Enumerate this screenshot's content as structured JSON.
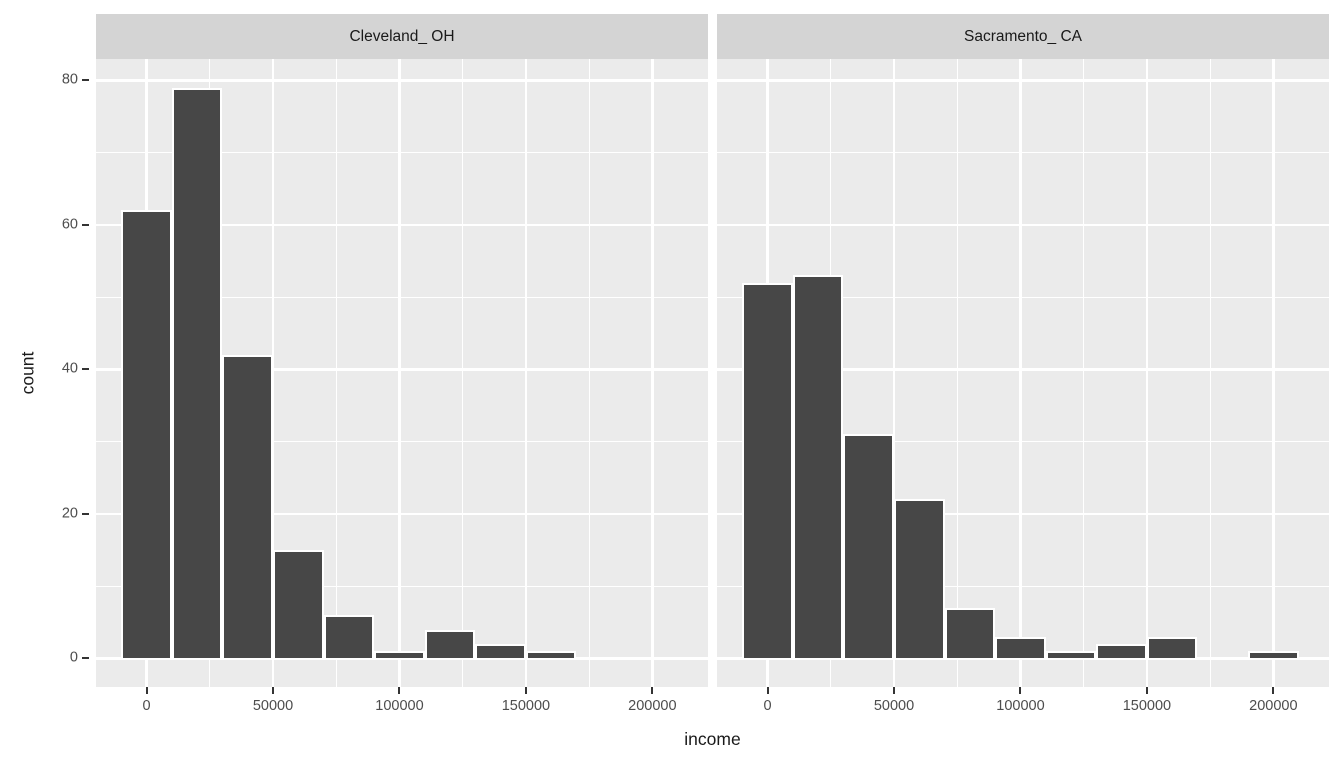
{
  "chart_data": {
    "type": "bar",
    "subtype": "faceted_histogram",
    "xlabel": "income",
    "ylabel": "count",
    "legend": "none",
    "grid": true,
    "facets": [
      {
        "title": "Cleveland_ OH",
        "counts": [
          62,
          79,
          42,
          15,
          6,
          1,
          4,
          2,
          1,
          0,
          0
        ]
      },
      {
        "title": "Sacramento_ CA",
        "counts": [
          52,
          53,
          31,
          22,
          7,
          3,
          1,
          2,
          3,
          0,
          1
        ]
      }
    ],
    "bin_centers": [
      0,
      20000,
      40000,
      60000,
      80000,
      100000,
      120000,
      140000,
      160000,
      180000,
      200000
    ],
    "binwidth": 20000,
    "x_ticks": [
      0,
      50000,
      100000,
      150000,
      200000
    ],
    "x_tick_labels": [
      "0",
      "50000",
      "100000",
      "150000",
      "200000"
    ],
    "x_minor_breaks": [
      25000,
      75000,
      125000,
      175000
    ],
    "y_ticks": [
      0,
      20,
      40,
      60,
      80
    ],
    "y_tick_labels": [
      "0",
      "20",
      "40",
      "60",
      "80"
    ],
    "y_minor_breaks": [
      10,
      30,
      50,
      70
    ],
    "xlim": [
      -20000,
      222000
    ],
    "ylim": [
      -3.95,
      82.95
    ],
    "colors": {
      "bar_fill": "#474747",
      "bar_stroke": "#ffffff",
      "panel_bg": "#ebebeb",
      "strip_bg": "#d4d4d4",
      "gridline": "#ffffff",
      "axis_text": "#4d4d4d",
      "axis_title": "#1a1a1a",
      "tick_mark": "#333333"
    }
  }
}
